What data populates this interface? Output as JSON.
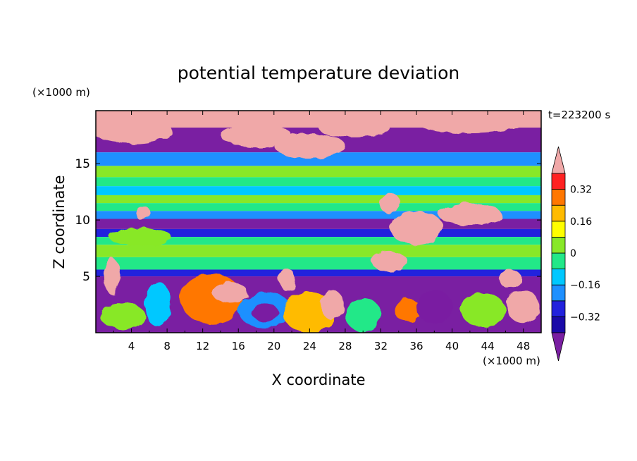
{
  "chart_data": {
    "type": "heatmap",
    "title": "potential temperature deviation",
    "xlabel": "X coordinate",
    "ylabel": "Z coordinate",
    "x_unit": "(×1000 m)",
    "y_unit": "(×1000 m)",
    "time_label": "t=223200 s",
    "xlim": [
      0,
      50
    ],
    "ylim": [
      0,
      19.7
    ],
    "x_ticks": [
      4,
      8,
      12,
      16,
      20,
      24,
      28,
      32,
      36,
      40,
      44,
      48
    ],
    "y_ticks": [
      5,
      10,
      15
    ],
    "colorbar": {
      "levels": [
        -0.4,
        -0.32,
        -0.24,
        -0.16,
        -0.08,
        0,
        0.08,
        0.16,
        0.24,
        0.32,
        0.4
      ],
      "colors": [
        "#7a1fa2",
        "#1a0aa8",
        "#2222dd",
        "#1e90ff",
        "#00c8ff",
        "#22e888",
        "#88e828",
        "#ffff00",
        "#ffbb00",
        "#ff7700",
        "#ff2222",
        "#f0a8a8"
      ],
      "tick_labels": [
        "-0.32",
        "-0.16",
        "0",
        "0.16",
        "0.32"
      ],
      "tick_values": [
        -0.32,
        -0.16,
        0,
        0.16,
        0.32
      ],
      "extend": "both"
    },
    "bands": [
      {
        "z0": 18.2,
        "z1": 19.7,
        "value": 0.42
      },
      {
        "z0": 16.0,
        "z1": 18.2,
        "value": -0.42
      },
      {
        "z0": 14.8,
        "z1": 16.0,
        "value": -0.2
      },
      {
        "z0": 13.8,
        "z1": 14.8,
        "value": 0.0
      },
      {
        "z0": 13.0,
        "z1": 13.8,
        "value": -0.05
      },
      {
        "z0": 12.2,
        "z1": 13.0,
        "value": -0.12
      },
      {
        "z0": 11.5,
        "z1": 12.2,
        "value": 0.04
      },
      {
        "z0": 10.8,
        "z1": 11.5,
        "value": -0.06
      },
      {
        "z0": 10.1,
        "z1": 10.8,
        "value": -0.2
      },
      {
        "z0": 9.2,
        "z1": 10.1,
        "value": -0.42
      },
      {
        "z0": 8.5,
        "z1": 9.2,
        "value": -0.3
      },
      {
        "z0": 7.8,
        "z1": 8.5,
        "value": -0.08
      },
      {
        "z0": 6.7,
        "z1": 7.8,
        "value": 0.0
      },
      {
        "z0": 5.6,
        "z1": 6.7,
        "value": -0.06
      },
      {
        "z0": 5.0,
        "z1": 5.6,
        "value": -0.3
      },
      {
        "z0": 0.0,
        "z1": 5.0,
        "value": -0.42
      }
    ],
    "blobs": [
      {
        "x": 4,
        "z": 18.0,
        "rx": 4.5,
        "rz": 1.2,
        "value": 0.42
      },
      {
        "x": 18,
        "z": 17.5,
        "rx": 4,
        "rz": 1.0,
        "value": 0.42
      },
      {
        "x": 24,
        "z": 16.6,
        "rx": 4,
        "rz": 1.1,
        "value": 0.42
      },
      {
        "x": 29,
        "z": 18.2,
        "rx": 4,
        "rz": 0.9,
        "value": 0.42
      },
      {
        "x": 42,
        "z": 18.6,
        "rx": 6,
        "rz": 0.9,
        "value": 0.42
      },
      {
        "x": 33,
        "z": 11.5,
        "rx": 1.2,
        "rz": 0.9,
        "value": 0.42
      },
      {
        "x": 36,
        "z": 9.3,
        "rx": 3,
        "rz": 1.5,
        "value": 0.42
      },
      {
        "x": 42,
        "z": 10.5,
        "rx": 3.5,
        "rz": 1.0,
        "value": 0.42
      },
      {
        "x": 33,
        "z": 6.3,
        "rx": 2,
        "rz": 0.9,
        "value": 0.42
      },
      {
        "x": 5.3,
        "z": 10.6,
        "rx": 0.9,
        "rz": 0.6,
        "value": 0.42
      },
      {
        "x": 5,
        "z": 8.5,
        "rx": 3.5,
        "rz": 0.8,
        "value": 0.05
      },
      {
        "x": 1.8,
        "z": 5.0,
        "rx": 0.9,
        "rz": 1.6,
        "value": 0.42
      },
      {
        "x": 21.5,
        "z": 4.7,
        "rx": 0.9,
        "rz": 1.0,
        "value": 0.42
      },
      {
        "x": 46.5,
        "z": 4.8,
        "rx": 1.3,
        "rz": 0.8,
        "value": 0.42
      },
      {
        "x": 13,
        "z": 3.0,
        "rx": 3.5,
        "rz": 2.2,
        "value": 0.3
      },
      {
        "x": 15,
        "z": 3.6,
        "rx": 2.0,
        "rz": 0.9,
        "value": 0.42
      },
      {
        "x": 19,
        "z": 2.0,
        "rx": 3.0,
        "rz": 1.6,
        "value": -0.22
      },
      {
        "x": 19,
        "z": 1.8,
        "rx": 1.5,
        "rz": 0.8,
        "value": -0.42
      },
      {
        "x": 24,
        "z": 1.8,
        "rx": 3.0,
        "rz": 1.8,
        "value": 0.2
      },
      {
        "x": 26.5,
        "z": 2.5,
        "rx": 1.3,
        "rz": 1.3,
        "value": 0.42
      },
      {
        "x": 30,
        "z": 1.6,
        "rx": 2.0,
        "rz": 1.5,
        "value": -0.02
      },
      {
        "x": 35,
        "z": 2.0,
        "rx": 1.5,
        "rz": 1.0,
        "value": 0.3
      },
      {
        "x": 3,
        "z": 1.5,
        "rx": 2.5,
        "rz": 1.2,
        "value": 0.05
      },
      {
        "x": 7,
        "z": 2.5,
        "rx": 1.5,
        "rz": 2.0,
        "value": -0.12
      },
      {
        "x": 43.5,
        "z": 2.0,
        "rx": 2.5,
        "rz": 1.5,
        "value": 0.05
      },
      {
        "x": 48,
        "z": 2.3,
        "rx": 1.8,
        "rz": 1.5,
        "value": 0.42
      },
      {
        "x": 38,
        "z": 2.3,
        "rx": 2.0,
        "rz": 1.5,
        "value": -0.42
      }
    ]
  }
}
